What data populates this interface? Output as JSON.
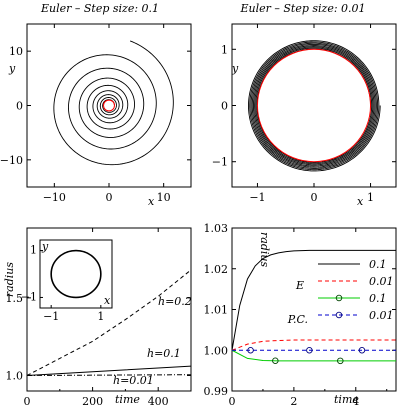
{
  "chart_data": [
    {
      "type": "line",
      "title": "Euler – Step size: 0.1",
      "xlabel": "x",
      "ylabel": "y",
      "xlim": [
        -15,
        15
      ],
      "ylim": [
        -15,
        15
      ],
      "xticks": [
        "−10",
        "0",
        "10"
      ],
      "yticks": [
        "10",
        "0",
        "−10"
      ],
      "series": [
        {
          "color": "#000000",
          "style": "solid",
          "start_radius": 1.0,
          "end_radius": 12.5,
          "turns": 8.2,
          "description_curve": "outward spiral"
        },
        {
          "color": "#ff0000",
          "style": "solid",
          "radius": 1.0,
          "description_curve": "circle"
        }
      ]
    },
    {
      "type": "line",
      "title": "Euler – Step size: 0.01",
      "xlabel": "x",
      "ylabel": "y",
      "xlim": [
        -1.45,
        1.45
      ],
      "ylim": [
        -1.45,
        1.45
      ],
      "xticks": [
        "−1",
        "0",
        "1"
      ],
      "yticks": [
        "1",
        "0",
        "−1"
      ],
      "series": [
        {
          "color": "#000000",
          "style": "solid",
          "start_radius": 1.0,
          "end_radius": 1.17,
          "turns": 8,
          "description_curve": "slow outward spiral"
        },
        {
          "color": "#ff0000",
          "style": "solid",
          "radius": 1.0,
          "description_curve": "circle"
        }
      ]
    },
    {
      "type": "line",
      "xlabel": "time",
      "ylabel": "radius",
      "xlim": [
        0,
        500
      ],
      "ylim": [
        0.9,
        1.95
      ],
      "xticks": [
        "0",
        "200",
        "400"
      ],
      "yticks": [
        "1.5",
        "1.0"
      ],
      "series": [
        {
          "name": "h=0.2",
          "style": "dashed",
          "x": [
            0,
            100,
            200,
            300,
            400,
            500
          ],
          "y": [
            1.0,
            1.11,
            1.22,
            1.36,
            1.51,
            1.68
          ]
        },
        {
          "name": "h=0.1",
          "style": "solid",
          "x": [
            0,
            100,
            200,
            300,
            400,
            500
          ],
          "y": [
            1.0,
            1.012,
            1.024,
            1.036,
            1.048,
            1.06
          ]
        },
        {
          "name": "h=0.01",
          "style": "dash-dot",
          "x": [
            0,
            250,
            500
          ],
          "y": [
            1.0,
            1.0025,
            1.005
          ]
        }
      ],
      "inset": {
        "xlabel": "x",
        "ylabel": "y",
        "xticks": [
          "−1",
          "1"
        ],
        "yticks": [
          "1",
          "−1"
        ],
        "shape": "circle",
        "radius": 1.0
      }
    },
    {
      "type": "line",
      "xlabel": "time",
      "ylabel": "radius",
      "xlim": [
        0,
        5.3
      ],
      "ylim": [
        0.99,
        1.03
      ],
      "xticks": [
        "0",
        "2",
        "4"
      ],
      "yticks": [
        "0.99",
        "1.00",
        "1.01",
        "1.02",
        "1.03"
      ],
      "legend": [
        {
          "group": "E",
          "label": "0.1",
          "color": "#000000",
          "style": "solid"
        },
        {
          "group": "E",
          "label": "0.01",
          "color": "#ff0000",
          "style": "dashed"
        },
        {
          "group": "P.C.",
          "label": "0.1",
          "color": "#00cc00",
          "style": "solid",
          "marker": "circle"
        },
        {
          "group": "P.C.",
          "label": "0.01",
          "color": "#0000cc",
          "style": "dashed",
          "marker": "circle"
        }
      ],
      "legend_groups": [
        "E",
        "P.C."
      ],
      "legend_position": "right",
      "series": [
        {
          "name": "E 0.1",
          "color": "#000000",
          "style": "solid",
          "x": [
            0,
            0.25,
            0.5,
            0.75,
            1.0,
            1.25,
            1.5,
            1.75,
            2.0,
            2.5,
            3.0,
            4.0,
            5.3
          ],
          "y": [
            1.0,
            1.011,
            1.0175,
            1.0207,
            1.0225,
            1.0234,
            1.0239,
            1.0242,
            1.0244,
            1.0245,
            1.0245,
            1.0245,
            1.0245
          ]
        },
        {
          "name": "E 0.01",
          "color": "#ff0000",
          "style": "dashed",
          "x": [
            0,
            0.5,
            1.0,
            1.5,
            2.0,
            3.0,
            5.3
          ],
          "y": [
            1.0,
            1.0015,
            1.0022,
            1.0024,
            1.0025,
            1.0025,
            1.0025
          ]
        },
        {
          "name": "P.C. 0.1",
          "color": "#00cc00",
          "style": "solid",
          "x": [
            0,
            0.5,
            1.0,
            1.5,
            2.0,
            3.0,
            5.3
          ],
          "y": [
            1.0,
            0.998,
            0.9975,
            0.9974,
            0.9974,
            0.9974,
            0.9974
          ],
          "markers_x": [
            1.4,
            3.5
          ]
        },
        {
          "name": "P.C. 0.01",
          "color": "#0000cc",
          "style": "dashed",
          "x": [
            0,
            5.3
          ],
          "y": [
            1.0,
            1.0
          ],
          "markers_x": [
            0.6,
            2.5,
            4.2
          ]
        }
      ]
    }
  ]
}
